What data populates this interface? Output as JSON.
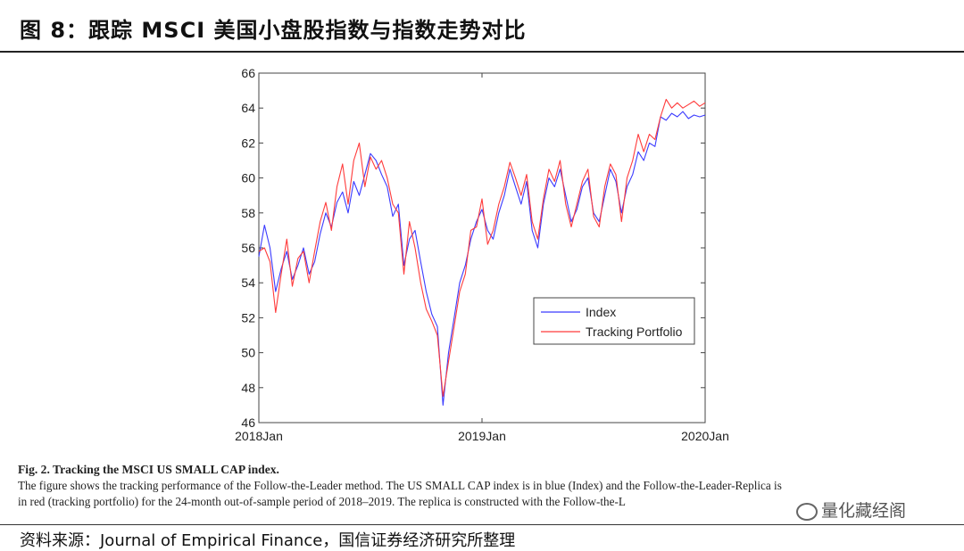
{
  "header": {
    "title": "图 8：跟踪 MSCI 美国小盘股指数与指数走势对比"
  },
  "caption": {
    "title": "Fig. 2. Tracking the MSCI US SMALL CAP index.",
    "line1": "The figure shows the tracking performance of the Follow-the-Leader method. The US SMALL CAP index is in blue (Index) and the Follow-the-Leader-Replica is",
    "line2": "in red (tracking portfolio) for the 24-month out-of-sample period of 2018–2019. The replica is constructed with the Follow-the-L"
  },
  "source": {
    "text": "资料来源：Journal of Empirical Finance，国信证券经济研究所整理"
  },
  "watermark": {
    "text": "量化藏经阁"
  },
  "chart_data": {
    "type": "line",
    "title": "",
    "xlabel": "",
    "ylabel": "",
    "xlim": [
      0,
      24
    ],
    "ylim": [
      46,
      66
    ],
    "xticks": [
      {
        "value": 0,
        "label": "2018Jan"
      },
      {
        "value": 12,
        "label": "2019Jan"
      },
      {
        "value": 24,
        "label": "2020Jan"
      }
    ],
    "yticks": [
      46,
      48,
      50,
      52,
      54,
      56,
      58,
      60,
      62,
      64,
      66
    ],
    "legend": {
      "position": "lower-right"
    },
    "series": [
      {
        "name": "Index",
        "color": "#3b3bff",
        "x": [
          0,
          0.3,
          0.6,
          0.9,
          1.2,
          1.5,
          1.8,
          2.1,
          2.4,
          2.7,
          3.0,
          3.3,
          3.6,
          3.9,
          4.2,
          4.5,
          4.8,
          5.1,
          5.4,
          5.7,
          6.0,
          6.3,
          6.6,
          6.9,
          7.2,
          7.5,
          7.8,
          8.1,
          8.4,
          8.7,
          9.0,
          9.3,
          9.6,
          9.9,
          10.2,
          10.5,
          10.8,
          11.1,
          11.4,
          11.7,
          12.0,
          12.3,
          12.6,
          12.9,
          13.2,
          13.5,
          13.8,
          14.1,
          14.4,
          14.7,
          15.0,
          15.3,
          15.6,
          15.9,
          16.2,
          16.5,
          16.8,
          17.1,
          17.4,
          17.7,
          18.0,
          18.3,
          18.6,
          18.9,
          19.2,
          19.5,
          19.8,
          20.1,
          20.4,
          20.7,
          21.0,
          21.3,
          21.6,
          21.9,
          22.2,
          22.5,
          22.8,
          23.1,
          23.4,
          23.7,
          24.0
        ],
        "y": [
          55.5,
          57.3,
          56.0,
          53.5,
          54.8,
          55.8,
          54.2,
          55.0,
          56.0,
          54.5,
          55.2,
          56.8,
          58.0,
          57.2,
          58.6,
          59.2,
          58.0,
          59.8,
          59.0,
          60.2,
          61.4,
          61.0,
          60.2,
          59.5,
          57.8,
          58.5,
          55.0,
          56.5,
          57.0,
          55.2,
          53.5,
          52.2,
          51.5,
          47.0,
          50.0,
          52.0,
          54.0,
          55.0,
          56.5,
          57.5,
          58.2,
          57.0,
          56.5,
          58.0,
          59.0,
          60.5,
          59.5,
          58.5,
          59.8,
          57.0,
          56.0,
          58.5,
          60.0,
          59.5,
          60.5,
          59.0,
          57.5,
          58.2,
          59.5,
          60.0,
          58.0,
          57.5,
          59.0,
          60.5,
          59.8,
          58.0,
          59.5,
          60.2,
          61.5,
          61.0,
          62.0,
          61.8,
          63.5,
          63.3,
          63.7,
          63.5,
          63.8,
          63.4,
          63.6,
          63.5,
          63.6
        ]
      },
      {
        "name": "Tracking Portfolio",
        "color": "#ff3b3b",
        "x": [
          0,
          0.3,
          0.6,
          0.9,
          1.2,
          1.5,
          1.8,
          2.1,
          2.4,
          2.7,
          3.0,
          3.3,
          3.6,
          3.9,
          4.2,
          4.5,
          4.8,
          5.1,
          5.4,
          5.7,
          6.0,
          6.3,
          6.6,
          6.9,
          7.2,
          7.5,
          7.8,
          8.1,
          8.4,
          8.7,
          9.0,
          9.3,
          9.6,
          9.9,
          10.2,
          10.5,
          10.8,
          11.1,
          11.4,
          11.7,
          12.0,
          12.3,
          12.6,
          12.9,
          13.2,
          13.5,
          13.8,
          14.1,
          14.4,
          14.7,
          15.0,
          15.3,
          15.6,
          15.9,
          16.2,
          16.5,
          16.8,
          17.1,
          17.4,
          17.7,
          18.0,
          18.3,
          18.6,
          18.9,
          19.2,
          19.5,
          19.8,
          20.1,
          20.4,
          20.7,
          21.0,
          21.3,
          21.6,
          21.9,
          22.2,
          22.5,
          22.8,
          23.1,
          23.4,
          23.7,
          24.0
        ],
        "y": [
          55.8,
          56.0,
          55.2,
          52.3,
          54.5,
          56.5,
          53.8,
          55.4,
          55.8,
          54.0,
          55.8,
          57.5,
          58.6,
          57.0,
          59.5,
          60.8,
          58.5,
          61.0,
          62.0,
          59.5,
          61.2,
          60.5,
          61.0,
          60.0,
          58.5,
          58.0,
          54.5,
          57.5,
          56.0,
          54.0,
          52.5,
          51.8,
          51.0,
          47.5,
          49.5,
          51.5,
          53.5,
          54.5,
          57.0,
          57.2,
          58.8,
          56.2,
          57.0,
          58.5,
          59.5,
          60.9,
          60.0,
          59.0,
          60.2,
          57.5,
          56.5,
          58.8,
          60.5,
          59.8,
          61.0,
          58.5,
          57.2,
          58.5,
          59.8,
          60.5,
          57.8,
          57.2,
          59.5,
          60.8,
          60.2,
          57.5,
          60.0,
          61.0,
          62.5,
          61.5,
          62.5,
          62.2,
          63.5,
          64.5,
          64.0,
          64.3,
          64.0,
          64.2,
          64.4,
          64.1,
          64.3
        ]
      }
    ]
  }
}
